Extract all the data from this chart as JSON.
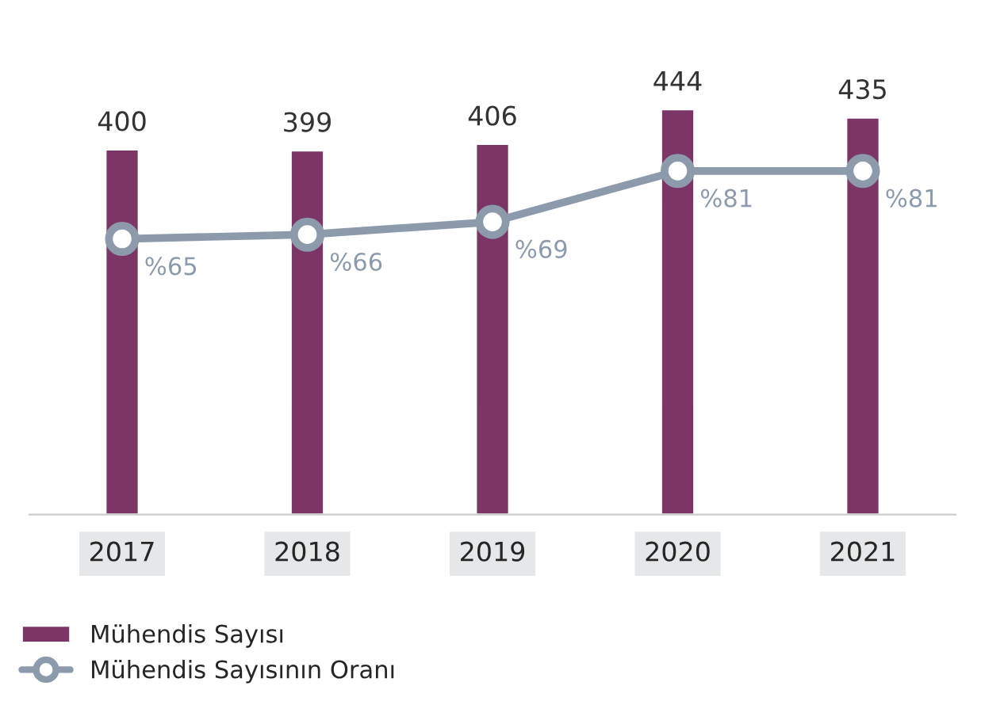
{
  "chart_data": {
    "type": "bar",
    "categories": [
      "2017",
      "2018",
      "2019",
      "2020",
      "2021"
    ],
    "legend": "bottom left",
    "grid": false,
    "tick_labels": "x",
    "series": [
      {
        "name": "Mühendis Sayısı",
        "color": "#7b3566",
        "values": [
          400,
          399,
          406,
          444,
          435
        ],
        "value_labels": [
          "400",
          "399",
          "406",
          "444",
          "435"
        ]
      },
      {
        "name": "Mühendis Sayısının Oranı",
        "type": "line",
        "axis": "y2",
        "color": "#8c9aab",
        "marker": "circle",
        "line_style": "solid",
        "values": [
          65,
          66,
          69,
          81,
          81
        ],
        "value_labels": [
          "%65",
          "%66",
          "%69",
          "%81",
          "%81"
        ]
      }
    ]
  }
}
